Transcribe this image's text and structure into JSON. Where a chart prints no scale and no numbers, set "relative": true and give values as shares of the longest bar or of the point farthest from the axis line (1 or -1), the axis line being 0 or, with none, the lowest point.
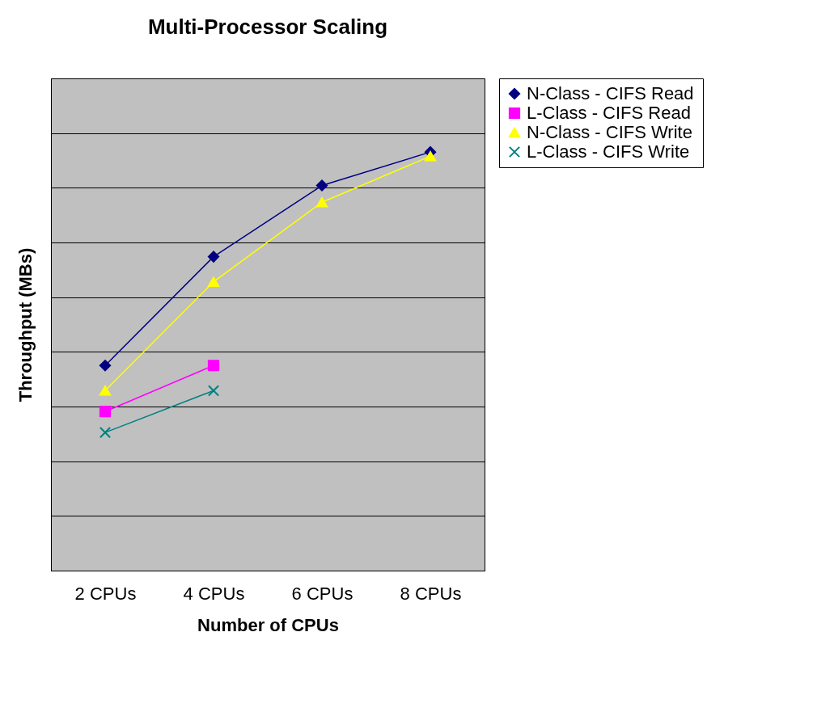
{
  "chart_data": {
    "type": "line",
    "title": "Multi-Processor Scaling",
    "xlabel": "Number of CPUs",
    "ylabel": "Throughput (MBs)",
    "categories": [
      "2 CPUs",
      "4 CPUs",
      "6 CPUs",
      "8 CPUs"
    ],
    "relative": true,
    "grid": "y",
    "legend": "right",
    "series": [
      {
        "name": "N-Class - CIFS Read",
        "color": "#000080",
        "marker": "diamond",
        "values": [
          0.49,
          0.75,
          0.92,
          1
        ]
      },
      {
        "name": "L-Class  - CIFS Read",
        "color": "#ff00ff",
        "marker": "square",
        "values": [
          0.38,
          0.49,
          null,
          null
        ]
      },
      {
        "name": "N-Class - CIFS Write",
        "color": "#ffff00",
        "marker": "triangle",
        "values": [
          0.43,
          0.69,
          0.88,
          0.99
        ]
      },
      {
        "name": "L-Class - CIFS Write",
        "color": "#008080",
        "marker": "cross",
        "values": [
          0.33,
          0.43,
          null,
          null
        ]
      }
    ]
  }
}
